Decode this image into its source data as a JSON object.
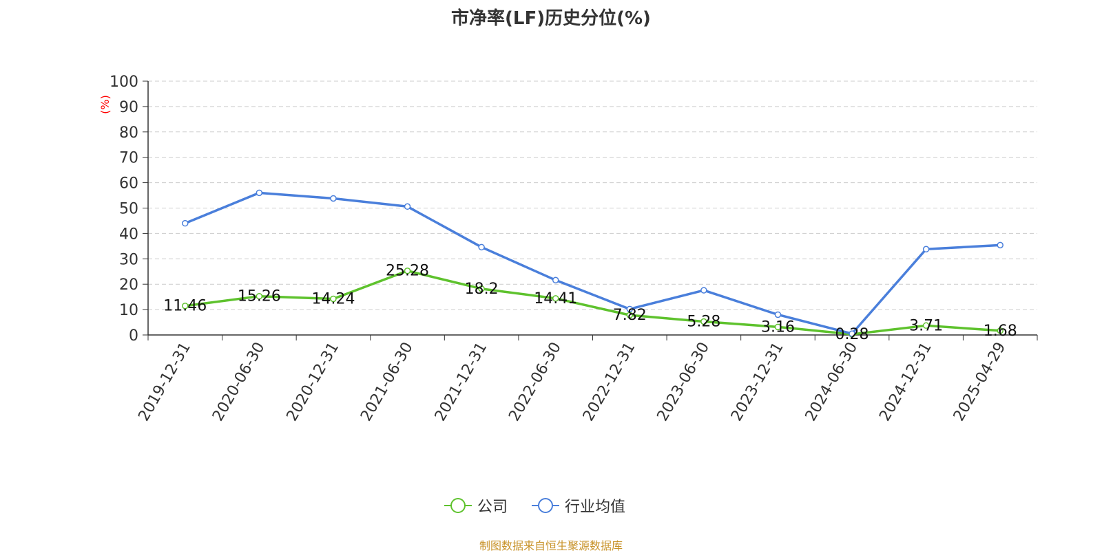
{
  "title": "市净率(LF)历史分位(%)",
  "source": "制图数据来自恒生聚源数据库",
  "chart_data": {
    "type": "line",
    "title": "市净率(LF)历史分位(%)",
    "xlabel": "",
    "ylabel": "(%)",
    "ylim": [
      0,
      100
    ],
    "yticks": [
      0,
      10,
      20,
      30,
      40,
      50,
      60,
      70,
      80,
      90,
      100
    ],
    "grid": true,
    "legend_position": "bottom-center",
    "categories": [
      "2019-12-31",
      "2020-06-30",
      "2020-12-31",
      "2021-06-30",
      "2021-12-31",
      "2022-06-30",
      "2022-12-31",
      "2023-06-30",
      "2023-12-31",
      "2024-06-30",
      "2024-12-31",
      "2025-04-29"
    ],
    "series": [
      {
        "name": "公司",
        "color": "#5ec22d",
        "values": [
          11.46,
          15.26,
          14.24,
          25.28,
          18.2,
          14.41,
          7.82,
          5.28,
          3.16,
          0.28,
          3.71,
          1.68
        ],
        "data_labels": [
          "11.46",
          "15.26",
          "14.24",
          "25.28",
          "18.2",
          "14.41",
          "7.82",
          "5.28",
          "3.16",
          "0.28",
          "3.71",
          "1.68"
        ]
      },
      {
        "name": "行业均值",
        "color": "#4a7fdb",
        "values": [
          44.0,
          56.0,
          53.8,
          50.6,
          34.6,
          21.6,
          10.2,
          17.6,
          8.0,
          0.5,
          33.8,
          35.4
        ]
      }
    ]
  },
  "colors": {
    "axis": "#333333",
    "grid": "#cccccc",
    "ylabel": "#ff0000",
    "source": "#c8932a"
  }
}
